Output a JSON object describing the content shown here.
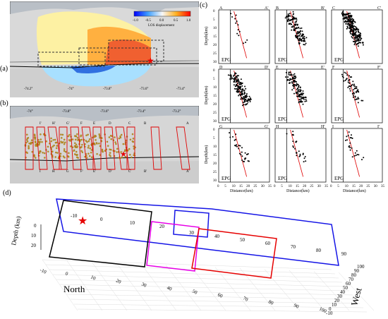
{
  "panel_labels": {
    "a": "(a)",
    "b": "(b)",
    "c": "(c)",
    "d": "(d)"
  },
  "panel_a": {
    "colorbar_ticks": [
      "-1.0",
      "-0.5",
      "0.0",
      "0.5",
      "1.0"
    ],
    "colorbar_title": "LOS displacement",
    "lon_ticks": [
      "-74.2°",
      "-74°",
      "-73.8°",
      "-73.6°",
      "-73.4°"
    ]
  },
  "panel_b": {
    "lon_ticks": [
      "-74°",
      "-73.8°",
      "-73.6°",
      "-73.4°",
      "-73.2°"
    ],
    "profile_labels": [
      "A",
      "A'",
      "B",
      "B'",
      "C",
      "C'",
      "D",
      "D'",
      "E",
      "E'",
      "F",
      "F'",
      "G",
      "G'",
      "H",
      "H'",
      "I",
      "I'"
    ]
  },
  "panel_c": {
    "profiles": [
      {
        "start": "A",
        "end": "A'"
      },
      {
        "start": "B",
        "end": "B'"
      },
      {
        "start": "C",
        "end": "C'"
      },
      {
        "start": "D",
        "end": "D'"
      },
      {
        "start": "E",
        "end": "E'"
      },
      {
        "start": "F",
        "end": "F'"
      },
      {
        "start": "G",
        "end": "G'"
      },
      {
        "start": "H",
        "end": "H'"
      },
      {
        "start": "I",
        "end": "I'"
      }
    ],
    "fault_label": "EPG",
    "ylabel": "Depth(km)",
    "xlabel": "Distance(km)",
    "x_ticks": [
      "0",
      "5",
      "10",
      "15",
      "20",
      "25",
      "30",
      "35"
    ],
    "y_ticks": [
      "0",
      "5",
      "10",
      "15",
      "20",
      "25",
      "30"
    ]
  },
  "panel_d": {
    "axis_north": "North",
    "axis_west": "West",
    "axis_depth": "Depth (km)",
    "depth_ticks": [
      "0",
      "10",
      "20"
    ],
    "north_ticks": [
      "-10",
      "0",
      "10",
      "20",
      "30",
      "40",
      "50",
      "60",
      "70",
      "80",
      "90",
      "100"
    ],
    "west_ticks": [
      "-10",
      "0",
      "10",
      "20",
      "30",
      "40",
      "50",
      "60",
      "70",
      "80",
      "90",
      "100"
    ],
    "top_edge_ticks": [
      "-10",
      "0",
      "10",
      "20"
    ],
    "center_ticks": [
      "30",
      "40",
      "50",
      "60",
      "70",
      "80",
      "90"
    ],
    "colors": {
      "blue": "#1414e6",
      "black": "#000000",
      "magenta": "#e600e6",
      "red": "#e60000",
      "star": "#e60000"
    }
  }
}
